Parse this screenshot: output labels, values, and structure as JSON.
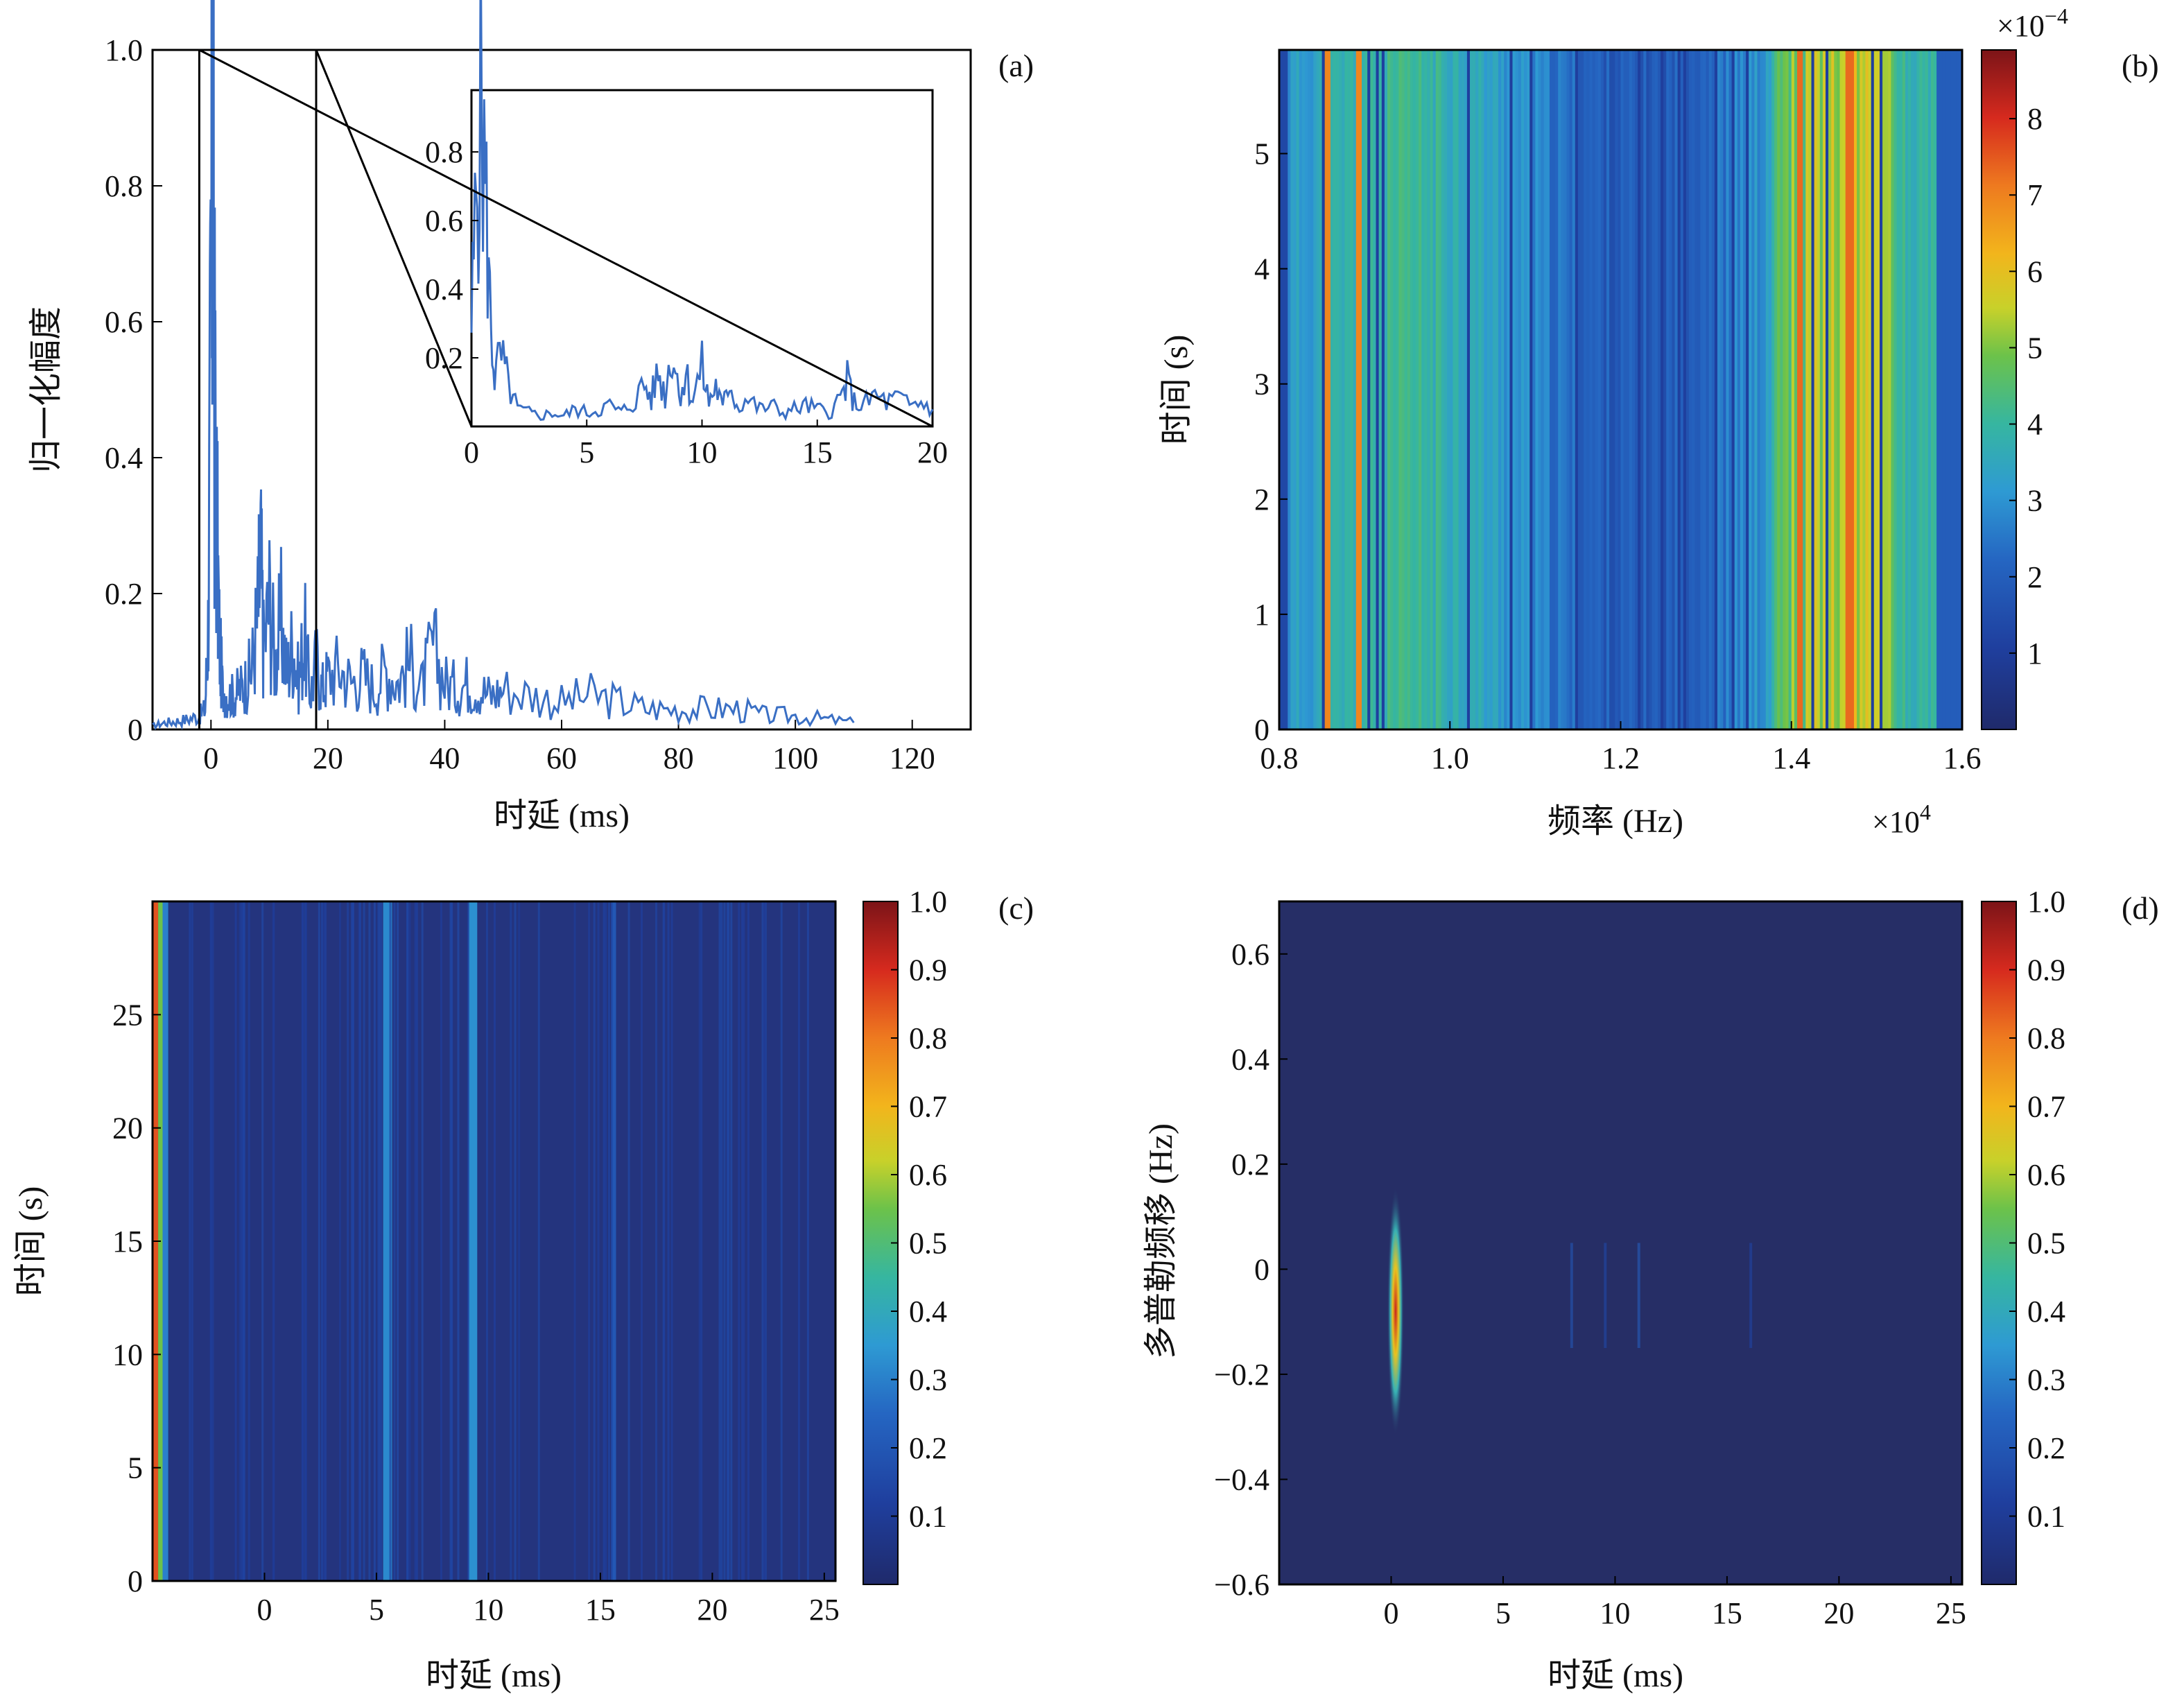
{
  "colors": {
    "line": "#3a6fc4",
    "frame": "#000000",
    "background": "#ffffff"
  },
  "chart_data": [
    {
      "id": "a",
      "type": "line",
      "panel_label": "(a)",
      "xlabel": "时延 (ms)",
      "ylabel": "归一化幅度",
      "xlim": [
        -10,
        130
      ],
      "ylim": [
        0,
        1.0
      ],
      "xticks": [
        "0",
        "20",
        "40",
        "60",
        "80",
        "100",
        "120"
      ],
      "yticks": [
        "0",
        "0.2",
        "0.4",
        "0.6",
        "0.8",
        "1.0"
      ],
      "series": [
        {
          "x": [
            -10,
            -8,
            -6,
            -4,
            -2,
            -1,
            -0.5,
            0,
            0.3,
            0.6,
            1,
            1.5,
            2,
            3,
            4,
            5,
            6,
            7,
            8,
            8.5,
            9,
            10,
            11,
            12,
            13,
            14,
            15,
            16,
            17,
            18,
            19,
            20,
            22,
            24,
            26,
            28,
            30,
            32,
            34,
            36,
            38,
            40,
            42,
            44,
            46,
            48,
            50,
            55,
            60,
            65,
            70,
            75,
            80,
            85,
            90,
            95,
            100,
            105,
            110
          ],
          "y": [
            0.005,
            0.01,
            0.012,
            0.015,
            0.02,
            0.03,
            0.15,
            0.6,
            1.0,
            0.5,
            0.3,
            0.12,
            0.06,
            0.05,
            0.05,
            0.06,
            0.07,
            0.09,
            0.17,
            0.25,
            0.12,
            0.19,
            0.1,
            0.16,
            0.08,
            0.13,
            0.07,
            0.14,
            0.05,
            0.1,
            0.06,
            0.08,
            0.09,
            0.07,
            0.08,
            0.06,
            0.09,
            0.07,
            0.1,
            0.06,
            0.12,
            0.07,
            0.06,
            0.07,
            0.06,
            0.05,
            0.06,
            0.05,
            0.04,
            0.05,
            0.04,
            0.03,
            0.03,
            0.03,
            0.03,
            0.02,
            0.02,
            0.015,
            0.01
          ]
        }
      ],
      "zoom_box": {
        "xlim": [
          -2,
          18
        ],
        "ylim": [
          0,
          1.0
        ]
      },
      "inset": {
        "xlim": [
          0,
          20
        ],
        "ylim": [
          0,
          0.98
        ],
        "xticks": [
          "0",
          "5",
          "10",
          "15",
          "20"
        ],
        "yticks": [
          "0.2",
          "0.4",
          "0.6",
          "0.8"
        ],
        "x": [
          0,
          0.2,
          0.4,
          0.6,
          0.8,
          1,
          1.3,
          1.6,
          2,
          2.5,
          3,
          3.5,
          4,
          4.5,
          5,
          5.5,
          6,
          6.5,
          7,
          7.5,
          7.8,
          8.1,
          8.4,
          8.7,
          9,
          9.3,
          9.6,
          10,
          10.3,
          10.6,
          10.9,
          11.2,
          11.5,
          12,
          12.5,
          13,
          13.5,
          14,
          14.5,
          15,
          15.5,
          16,
          16.3,
          16.6,
          17,
          17.5,
          18,
          18.5,
          19,
          19.5,
          20
        ],
        "y": [
          0.3,
          0.65,
          0.95,
          0.7,
          0.35,
          0.15,
          0.2,
          0.12,
          0.05,
          0.04,
          0.03,
          0.04,
          0.03,
          0.05,
          0.04,
          0.05,
          0.06,
          0.04,
          0.07,
          0.12,
          0.08,
          0.16,
          0.09,
          0.24,
          0.1,
          0.15,
          0.08,
          0.17,
          0.07,
          0.12,
          0.05,
          0.14,
          0.06,
          0.08,
          0.05,
          0.06,
          0.04,
          0.05,
          0.06,
          0.05,
          0.04,
          0.08,
          0.13,
          0.07,
          0.06,
          0.09,
          0.07,
          0.08,
          0.06,
          0.07,
          0.05
        ]
      }
    },
    {
      "id": "b",
      "type": "heatmap",
      "panel_label": "(b)",
      "xlabel": "频率 (Hz)",
      "ylabel": "时间 (s)",
      "x_multiplier_base": "×10",
      "x_multiplier_exp": "4",
      "xlim": [
        0.8,
        1.6
      ],
      "ylim": [
        0,
        5.9
      ],
      "xticks": [
        "0.8",
        "1.0",
        "1.2",
        "1.4",
        "1.6"
      ],
      "yticks": [
        "0",
        "1",
        "2",
        "3",
        "4",
        "5"
      ],
      "colorbar": {
        "multiplier_base": "×10",
        "multiplier_exp": "−4",
        "ticks": [
          "1",
          "2",
          "3",
          "4",
          "5",
          "6",
          "7",
          "8"
        ],
        "range": [
          0,
          8.9
        ]
      },
      "pattern": "vertical striations; strongest bands near 0.85, 0.9, 1.38–1.5 ×10⁴ Hz"
    },
    {
      "id": "c",
      "type": "heatmap",
      "panel_label": "(c)",
      "xlabel": "时延 (ms)",
      "ylabel": "时间 (s)",
      "xlim": [
        -5,
        25.5
      ],
      "ylim": [
        0,
        30
      ],
      "xticks": [
        "0",
        "5",
        "10",
        "15",
        "20",
        "25"
      ],
      "yticks": [
        "0",
        "5",
        "10",
        "15",
        "20",
        "25"
      ],
      "colorbar": {
        "ticks": [
          "0.1",
          "0.2",
          "0.3",
          "0.4",
          "0.5",
          "0.6",
          "0.7",
          "0.8",
          "0.9",
          "1.0"
        ],
        "range": [
          0,
          1.0
        ]
      },
      "pattern": "peak at delay ≈ -4.5 ms; faint lines near 5.5 and 9.3 ms"
    },
    {
      "id": "d",
      "type": "heatmap",
      "panel_label": "(d)",
      "xlabel": "时延 (ms)",
      "ylabel": "多普勒频移 (Hz)",
      "xlim": [
        -5,
        25.5
      ],
      "ylim": [
        -0.6,
        0.7
      ],
      "xticks": [
        "0",
        "5",
        "10",
        "15",
        "20",
        "25"
      ],
      "yticks": [
        "−0.6",
        "−0.4",
        "−0.2",
        "0",
        "0.2",
        "0.4",
        "0.6"
      ],
      "colorbar": {
        "ticks": [
          "0.1",
          "0.2",
          "0.3",
          "0.4",
          "0.5",
          "0.6",
          "0.7",
          "0.8",
          "0.9",
          "1.0"
        ],
        "range": [
          0,
          1.0
        ]
      },
      "pattern": "single peak at delay ≈ 0.2 ms, Doppler ≈ -0.1 Hz; weak traces near 8, 11, 16 ms"
    }
  ]
}
